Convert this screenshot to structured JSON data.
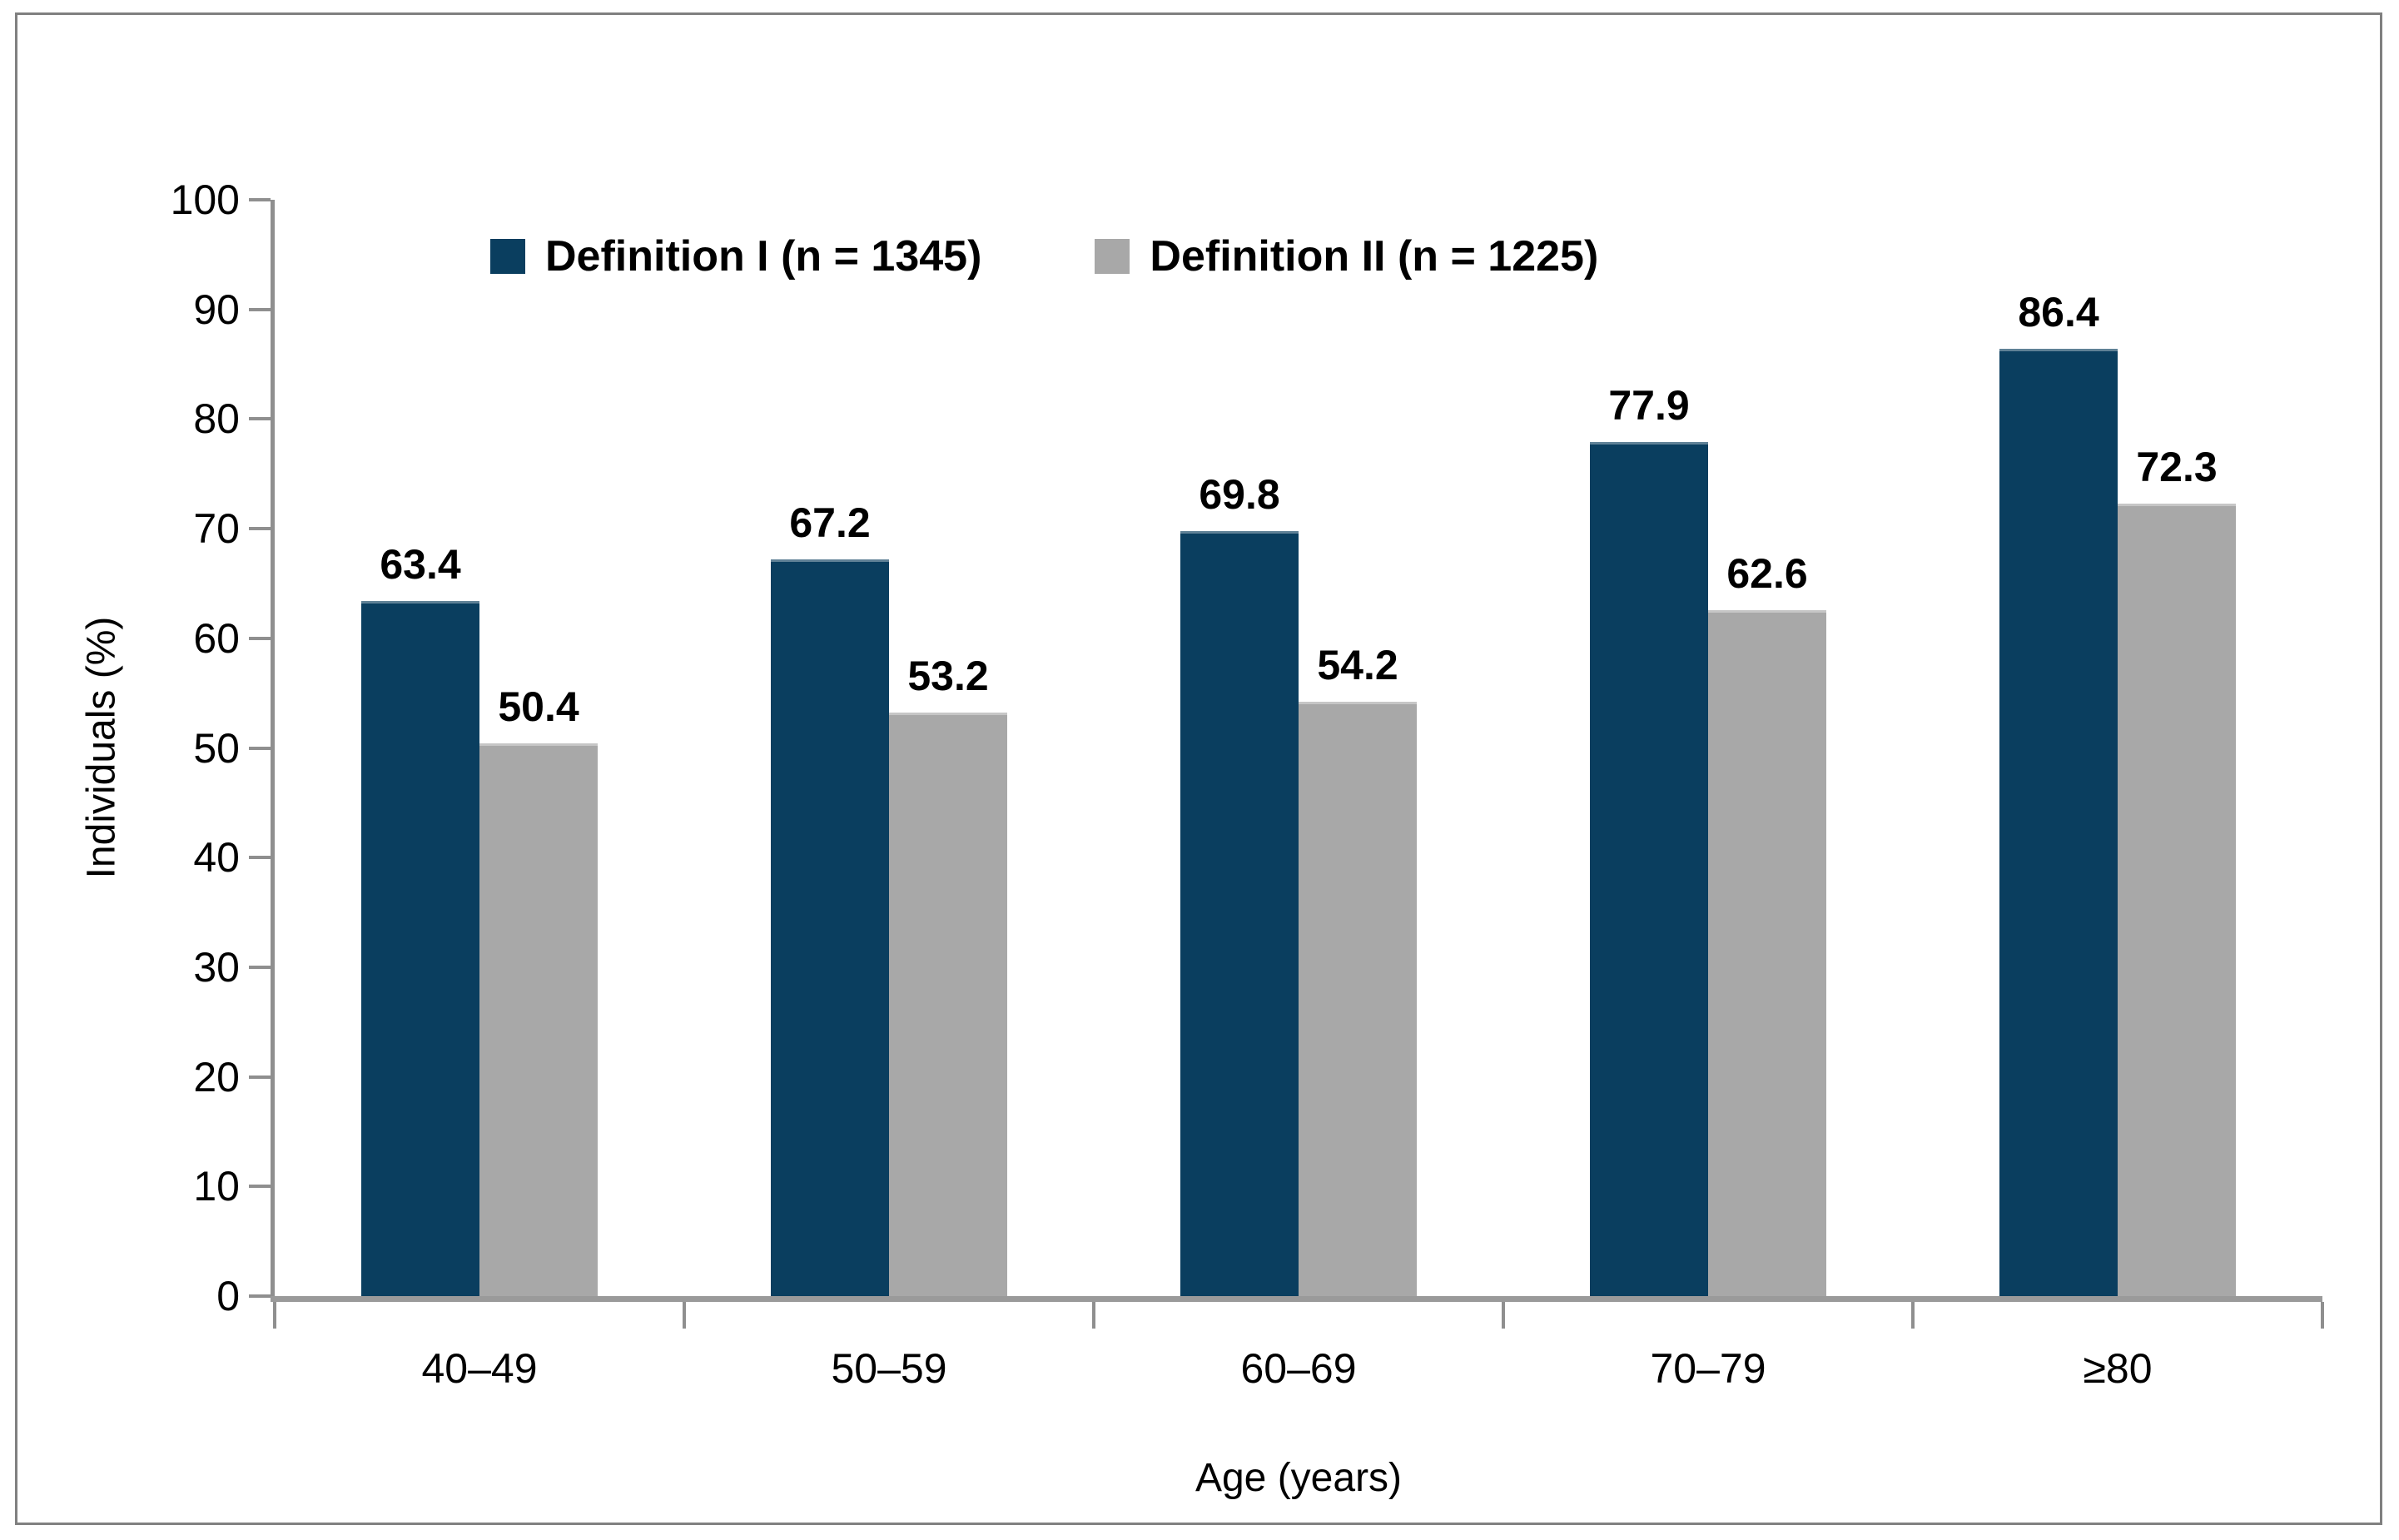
{
  "figure": {
    "border_color": "#808080",
    "background": "#ffffff",
    "axis_color": "#8f8f8f",
    "text_color": "#000000"
  },
  "chart_data": {
    "type": "bar",
    "title": "",
    "categories": [
      "40–49",
      "50–59",
      "60–69",
      "70–79",
      "≥80"
    ],
    "series": [
      {
        "name": "Definition I (n = 1345)",
        "color": "#0a3e5f",
        "values": [
          63.4,
          67.2,
          69.8,
          77.9,
          86.4
        ]
      },
      {
        "name": "Definition II (n = 1225)",
        "color": "#a8a8a8",
        "values": [
          50.4,
          53.2,
          54.2,
          62.6,
          72.3
        ]
      }
    ],
    "xlabel": "Age (years)",
    "ylabel": "Individuals (%)",
    "ylim": [
      0,
      100
    ],
    "yticks": [
      0,
      10,
      20,
      30,
      40,
      50,
      60,
      70,
      80,
      90,
      100
    ],
    "grid": false,
    "legend_position": "top-center",
    "data_labels": true
  }
}
